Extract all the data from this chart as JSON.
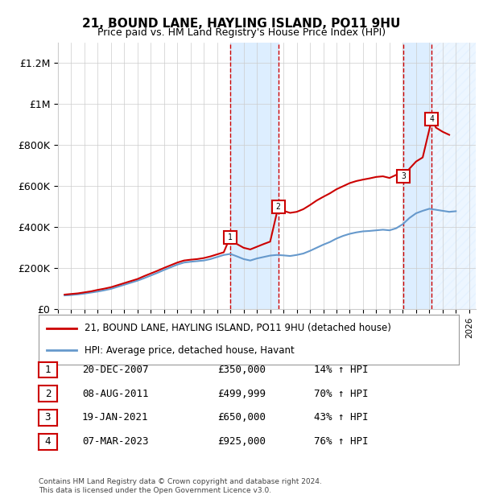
{
  "title": "21, BOUND LANE, HAYLING ISLAND, PO11 9HU",
  "subtitle": "Price paid vs. HM Land Registry's House Price Index (HPI)",
  "footnote": "Contains HM Land Registry data © Crown copyright and database right 2024.\nThis data is licensed under the Open Government Licence v3.0.",
  "legend_line1": "21, BOUND LANE, HAYLING ISLAND, PO11 9HU (detached house)",
  "legend_line2": "HPI: Average price, detached house, Havant",
  "transactions": [
    {
      "num": 1,
      "date": "20-DEC-2007",
      "price": "£350,000",
      "hpi": "14% ↑ HPI",
      "x": 2007.97
    },
    {
      "num": 2,
      "date": "08-AUG-2011",
      "price": "£499,999",
      "hpi": "70% ↑ HPI",
      "x": 2011.61
    },
    {
      "num": 3,
      "date": "19-JAN-2021",
      "price": "£650,000",
      "hpi": "43% ↑ HPI",
      "x": 2021.05
    },
    {
      "num": 4,
      "date": "07-MAR-2023",
      "price": "£925,000",
      "hpi": "76% ↑ HPI",
      "x": 2023.18
    }
  ],
  "transaction_prices": [
    350000,
    499999,
    650000,
    925000
  ],
  "ylim": [
    0,
    1300000
  ],
  "xlim": [
    1995,
    2026.5
  ],
  "yticks": [
    0,
    200000,
    400000,
    600000,
    800000,
    1000000,
    1200000
  ],
  "ytick_labels": [
    "£0",
    "£200K",
    "£400K",
    "£600K",
    "£800K",
    "£1M",
    "£1.2M"
  ],
  "xticks": [
    1995,
    1996,
    1997,
    1998,
    1999,
    2000,
    2001,
    2002,
    2003,
    2004,
    2005,
    2006,
    2007,
    2008,
    2009,
    2010,
    2011,
    2012,
    2013,
    2014,
    2015,
    2016,
    2017,
    2018,
    2019,
    2020,
    2021,
    2022,
    2023,
    2024,
    2025,
    2026
  ],
  "red_color": "#cc0000",
  "blue_color": "#6699cc",
  "shade_color": "#ddeeff",
  "hatch_color": "#aabbcc",
  "hpi_data": {
    "x": [
      1995.5,
      1996.0,
      1996.5,
      1997.0,
      1997.5,
      1998.0,
      1998.5,
      1999.0,
      1999.5,
      2000.0,
      2000.5,
      2001.0,
      2001.5,
      2002.0,
      2002.5,
      2003.0,
      2003.5,
      2004.0,
      2004.5,
      2005.0,
      2005.5,
      2006.0,
      2006.5,
      2007.0,
      2007.5,
      2008.0,
      2008.5,
      2009.0,
      2009.5,
      2010.0,
      2010.5,
      2011.0,
      2011.5,
      2012.0,
      2012.5,
      2013.0,
      2013.5,
      2014.0,
      2014.5,
      2015.0,
      2015.5,
      2016.0,
      2016.5,
      2017.0,
      2017.5,
      2018.0,
      2018.5,
      2019.0,
      2019.5,
      2020.0,
      2020.5,
      2021.0,
      2021.5,
      2022.0,
      2022.5,
      2023.0,
      2023.5,
      2024.0,
      2024.5,
      2025.0
    ],
    "y": [
      68000,
      70000,
      73000,
      77000,
      82000,
      87000,
      93000,
      100000,
      110000,
      120000,
      130000,
      140000,
      152000,
      165000,
      178000,
      192000,
      205000,
      218000,
      228000,
      232000,
      235000,
      238000,
      245000,
      255000,
      265000,
      270000,
      258000,
      245000,
      238000,
      248000,
      255000,
      262000,
      265000,
      263000,
      260000,
      265000,
      272000,
      285000,
      300000,
      315000,
      328000,
      345000,
      358000,
      368000,
      375000,
      380000,
      382000,
      385000,
      388000,
      385000,
      395000,
      415000,
      445000,
      468000,
      480000,
      490000,
      485000,
      480000,
      475000,
      478000
    ]
  },
  "price_data": {
    "x": [
      1995.5,
      1996.0,
      1996.5,
      1997.0,
      1997.5,
      1998.0,
      1998.5,
      1999.0,
      1999.5,
      2000.0,
      2000.5,
      2001.0,
      2001.5,
      2002.0,
      2002.5,
      2003.0,
      2003.5,
      2004.0,
      2004.5,
      2005.0,
      2005.5,
      2006.0,
      2006.5,
      2007.0,
      2007.5,
      2007.97,
      2008.5,
      2009.0,
      2009.5,
      2010.0,
      2010.5,
      2011.0,
      2011.61,
      2012.0,
      2012.5,
      2013.0,
      2013.5,
      2014.0,
      2014.5,
      2015.0,
      2015.5,
      2016.0,
      2016.5,
      2017.0,
      2017.5,
      2018.0,
      2018.5,
      2019.0,
      2019.5,
      2020.0,
      2020.5,
      2021.05,
      2021.5,
      2022.0,
      2022.5,
      2023.18,
      2023.5,
      2024.0,
      2024.5
    ],
    "y": [
      72000,
      75000,
      78000,
      83000,
      88000,
      95000,
      101000,
      108000,
      118000,
      128000,
      138000,
      148000,
      162000,
      175000,
      188000,
      202000,
      215000,
      228000,
      238000,
      242000,
      245000,
      250000,
      258000,
      268000,
      278000,
      350000,
      318000,
      300000,
      292000,
      305000,
      318000,
      330000,
      499999,
      480000,
      470000,
      475000,
      488000,
      508000,
      530000,
      548000,
      565000,
      585000,
      600000,
      615000,
      625000,
      632000,
      638000,
      645000,
      648000,
      640000,
      655000,
      650000,
      685000,
      720000,
      740000,
      925000,
      885000,
      865000,
      850000
    ]
  }
}
